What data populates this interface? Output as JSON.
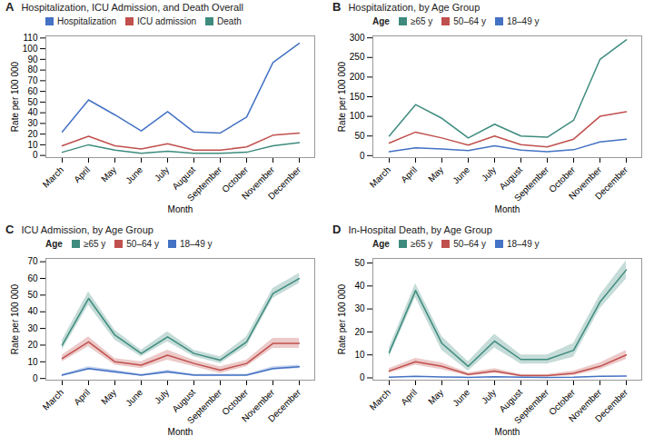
{
  "chart_data": [
    {
      "type": "line",
      "title": "Hospitalization, ICU Admission, and Death Overall",
      "annotations": [
        "A"
      ],
      "xlabel": "Month",
      "ylabel": "Rate per 100 000",
      "categories": [
        "March",
        "April",
        "May",
        "June",
        "July",
        "August",
        "September",
        "October",
        "November",
        "December"
      ],
      "series": [
        {
          "name": "Hospitalization",
          "color": "#4472C4",
          "values": [
            22,
            52,
            38,
            23,
            41,
            22,
            21,
            36,
            87,
            105
          ]
        },
        {
          "name": "ICU admission",
          "color": "#C0504D",
          "values": [
            9,
            18,
            9,
            6,
            11,
            5,
            5,
            8,
            19,
            21
          ]
        },
        {
          "name": "Death",
          "color": "#3E8B7E",
          "values": [
            3,
            10,
            5,
            2,
            4,
            2,
            2,
            3,
            9,
            12
          ]
        }
      ],
      "ylim": [
        -2,
        112
      ],
      "yticks": [
        0,
        10,
        20,
        30,
        40,
        50,
        60,
        70,
        80,
        90,
        100,
        110
      ],
      "grid": false,
      "legend": "upper left"
    },
    {
      "type": "line",
      "title": "Hospitalization, by Age Group",
      "annotations": [
        "B"
      ],
      "xlabel": "Month",
      "ylabel": "Rate per 100 000",
      "categories": [
        "March",
        "April",
        "May",
        "June",
        "July",
        "August",
        "September",
        "October",
        "November",
        "December"
      ],
      "legend_title": "Age",
      "series": [
        {
          "name": "≥65 y",
          "color": "#3E8B7E",
          "values": [
            50,
            130,
            95,
            45,
            80,
            50,
            47,
            90,
            245,
            295
          ]
        },
        {
          "name": "50–64 y",
          "color": "#C0504D",
          "values": [
            32,
            60,
            45,
            27,
            50,
            28,
            22,
            42,
            100,
            112
          ]
        },
        {
          "name": "18–49 y",
          "color": "#4472C4",
          "values": [
            10,
            20,
            17,
            13,
            25,
            14,
            10,
            15,
            35,
            42
          ]
        }
      ],
      "ylim": [
        -5,
        305
      ],
      "yticks": [
        0,
        50,
        100,
        150,
        200,
        250,
        300
      ],
      "grid": false,
      "legend": "upper left"
    },
    {
      "type": "line",
      "title": "ICU Admission, by Age Group",
      "annotations": [
        "C"
      ],
      "xlabel": "Month",
      "ylabel": "Rate per 100 000",
      "categories": [
        "March",
        "April",
        "May",
        "June",
        "July",
        "August",
        "September",
        "October",
        "November",
        "December"
      ],
      "legend_title": "Age",
      "series": [
        {
          "name": "≥65 y",
          "color": "#3E8B7E",
          "values": [
            20,
            48,
            26,
            15,
            25,
            15,
            11,
            22,
            51,
            60
          ],
          "ci_lo": [
            17,
            44,
            23,
            13,
            22,
            13,
            9,
            19,
            48,
            57
          ],
          "ci_hi": [
            23,
            52,
            29,
            17,
            28,
            17,
            13,
            25,
            54,
            63
          ]
        },
        {
          "name": "50–64 y",
          "color": "#C0504D",
          "values": [
            12,
            22,
            10,
            8,
            14,
            9,
            5,
            9,
            21,
            21
          ],
          "ci_lo": [
            10,
            19,
            8,
            6,
            11,
            7,
            3,
            7,
            18,
            18
          ],
          "ci_hi": [
            14,
            25,
            12,
            10,
            17,
            11,
            7,
            11,
            24,
            24
          ]
        },
        {
          "name": "18–49 y",
          "color": "#4472C4",
          "values": [
            2,
            6,
            4,
            2,
            4,
            2,
            2,
            2,
            6,
            7
          ],
          "ci_lo": [
            1.5,
            5,
            3,
            1.5,
            3,
            1.5,
            1.5,
            1.5,
            5,
            6
          ],
          "ci_hi": [
            2.5,
            7,
            5,
            2.5,
            5,
            2.5,
            2.5,
            2.5,
            7,
            8
          ]
        }
      ],
      "ylim": [
        -1,
        72
      ],
      "yticks": [
        0,
        10,
        20,
        30,
        40,
        50,
        60,
        70
      ],
      "grid": false,
      "legend": "upper left"
    },
    {
      "type": "line",
      "title": "In-Hospital Death, by Age Group",
      "annotations": [
        "D"
      ],
      "xlabel": "Month",
      "ylabel": "Rate per 100 000",
      "categories": [
        "March",
        "April",
        "May",
        "June",
        "July",
        "August",
        "September",
        "October",
        "November",
        "December"
      ],
      "legend_title": "Age",
      "series": [
        {
          "name": "≥65 y",
          "color": "#3E8B7E",
          "values": [
            11,
            38,
            15,
            5,
            16,
            8,
            8,
            12,
            33,
            47
          ],
          "ci_lo": [
            9,
            35,
            12,
            3,
            13,
            6,
            6,
            9,
            30,
            43
          ],
          "ci_hi": [
            13,
            41,
            18,
            7,
            19,
            10,
            10,
            15,
            36,
            51
          ]
        },
        {
          "name": "50–64 y",
          "color": "#C0504D",
          "values": [
            3,
            7,
            5,
            1.5,
            3,
            1,
            1,
            2,
            5,
            10
          ],
          "ci_lo": [
            2,
            5.5,
            3.5,
            0.8,
            2,
            0.5,
            0.5,
            1,
            3.5,
            8
          ],
          "ci_hi": [
            4,
            8.5,
            6.5,
            2.2,
            4,
            1.5,
            1.5,
            3,
            6.5,
            12
          ]
        },
        {
          "name": "18–49 y",
          "color": "#4472C4",
          "values": [
            0.3,
            0.7,
            0.4,
            0.2,
            0.5,
            0.3,
            0.2,
            0.3,
            0.7,
            0.8
          ]
        }
      ],
      "ylim": [
        -1,
        52
      ],
      "yticks": [
        0,
        10,
        20,
        30,
        40,
        50
      ],
      "grid": false,
      "legend": "upper left"
    }
  ]
}
